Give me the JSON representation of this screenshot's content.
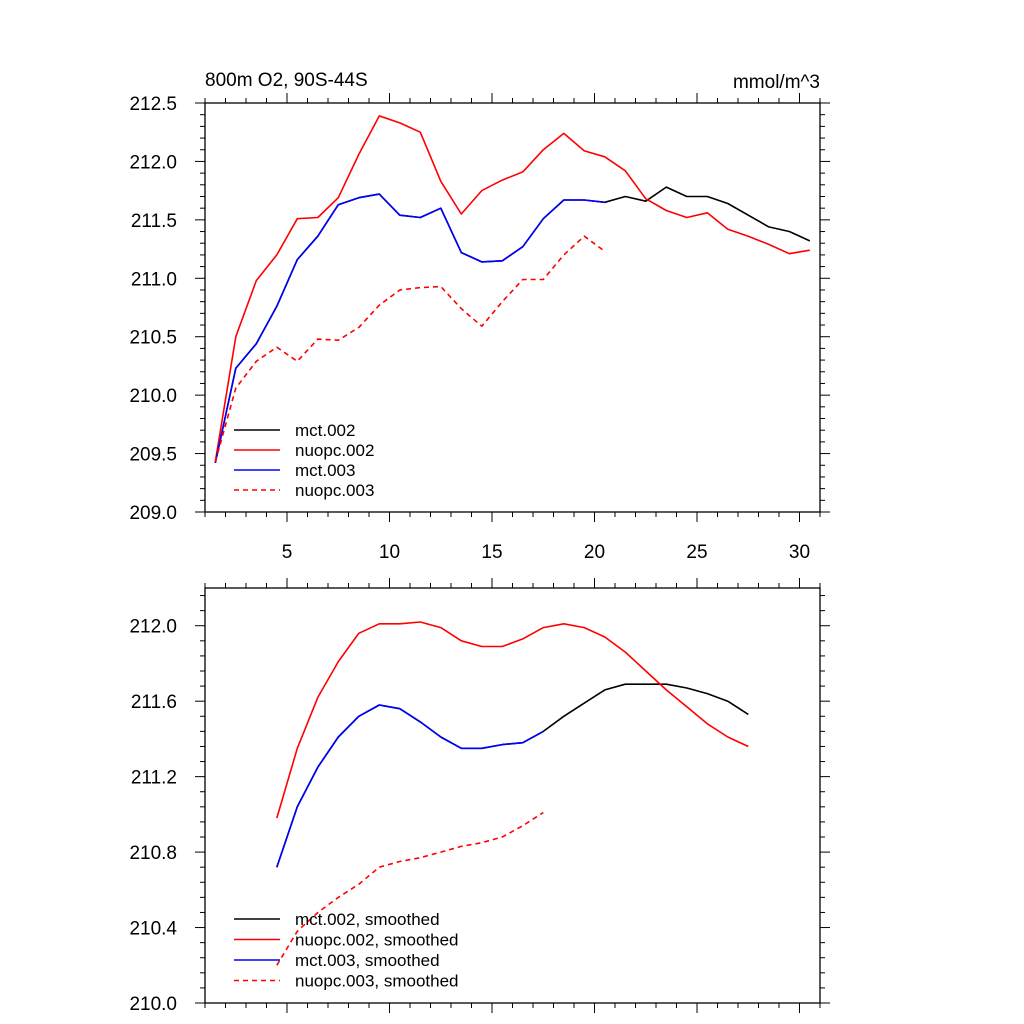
{
  "chart_data": [
    {
      "type": "line",
      "title": "800m O2, 90S-44S",
      "units": "mmol/m^3",
      "xlabel": "",
      "ylabel": "",
      "xlim": [
        1,
        31
      ],
      "ylim": [
        209.0,
        212.5
      ],
      "xticks": [
        5,
        10,
        15,
        20,
        25,
        30
      ],
      "xtick_labels": [
        "5",
        "10",
        "15",
        "20",
        "25",
        "30"
      ],
      "yticks": [
        209.0,
        209.5,
        210.0,
        210.5,
        211.0,
        211.5,
        212.0,
        212.5
      ],
      "ytick_labels": [
        "209.0",
        "209.5",
        "210.0",
        "210.5",
        "211.0",
        "211.5",
        "212.0",
        "212.5"
      ],
      "series": [
        {
          "name": "mct.002",
          "color": "#000000",
          "dash": "solid",
          "x": [
            1.5,
            2.5,
            3.5,
            4.5,
            5.5,
            6.5,
            7.5,
            8.5,
            9.5,
            10.5,
            11.5,
            12.5,
            13.5,
            14.5,
            15.5,
            16.5,
            17.5,
            18.5,
            19.5,
            20.5,
            21.5,
            22.5,
            23.5,
            24.5,
            25.5,
            26.5,
            27.5,
            28.5,
            29.5,
            30.5
          ],
          "y": [
            209.42,
            210.23,
            210.44,
            210.76,
            211.16,
            211.36,
            211.63,
            211.69,
            211.72,
            211.54,
            211.52,
            211.6,
            211.22,
            211.14,
            211.15,
            211.27,
            211.51,
            211.67,
            211.67,
            211.65,
            211.7,
            211.66,
            211.78,
            211.7,
            211.7,
            211.64,
            211.54,
            211.44,
            211.4,
            211.32
          ]
        },
        {
          "name": "nuopc.002",
          "color": "#ff0000",
          "dash": "solid",
          "x": [
            1.5,
            2.5,
            3.5,
            4.5,
            5.5,
            6.5,
            7.5,
            8.5,
            9.5,
            10.5,
            11.5,
            12.5,
            13.5,
            14.5,
            15.5,
            16.5,
            17.5,
            18.5,
            19.5,
            20.5,
            21.5,
            22.5,
            23.5,
            24.5,
            25.5,
            26.5,
            27.5,
            28.5,
            29.5,
            30.5
          ],
          "y": [
            209.43,
            210.5,
            210.98,
            211.2,
            211.51,
            211.52,
            211.69,
            212.06,
            212.39,
            212.33,
            212.25,
            211.83,
            211.55,
            211.75,
            211.84,
            211.91,
            212.1,
            212.24,
            212.09,
            212.04,
            211.92,
            211.68,
            211.58,
            211.52,
            211.56,
            211.42,
            211.36,
            211.29,
            211.21,
            211.24
          ]
        },
        {
          "name": "mct.003",
          "color": "#0000ff",
          "dash": "solid",
          "x": [
            1.5,
            2.5,
            3.5,
            4.5,
            5.5,
            6.5,
            7.5,
            8.5,
            9.5,
            10.5,
            11.5,
            12.5,
            13.5,
            14.5,
            15.5,
            16.5,
            17.5,
            18.5,
            19.5,
            20.5
          ],
          "y": [
            209.42,
            210.23,
            210.44,
            210.76,
            211.16,
            211.36,
            211.63,
            211.69,
            211.72,
            211.54,
            211.52,
            211.6,
            211.22,
            211.14,
            211.15,
            211.27,
            211.51,
            211.67,
            211.67,
            211.65
          ]
        },
        {
          "name": "nuopc.003",
          "color": "#ff0000",
          "dash": "dashed",
          "x": [
            1.5,
            2.5,
            3.5,
            4.5,
            5.5,
            6.5,
            7.5,
            8.5,
            9.5,
            10.5,
            11.5,
            12.5,
            13.5,
            14.5,
            15.5,
            16.5,
            17.5,
            18.5,
            19.5,
            20.5
          ],
          "y": [
            209.43,
            210.06,
            210.29,
            210.41,
            210.29,
            210.48,
            210.47,
            210.58,
            210.77,
            210.9,
            210.92,
            210.93,
            210.74,
            210.59,
            210.8,
            210.99,
            210.99,
            211.2,
            211.36,
            211.23
          ]
        }
      ]
    },
    {
      "type": "line",
      "title": "",
      "xlabel": "",
      "ylabel": "",
      "xlim": [
        1,
        31
      ],
      "ylim": [
        210.0,
        212.2
      ],
      "xticks": [
        5,
        10,
        15,
        20,
        25,
        30
      ],
      "xtick_labels": [],
      "yticks": [
        210.0,
        210.4,
        210.8,
        211.2,
        211.6,
        212.0
      ],
      "ytick_labels": [
        "210.0",
        "210.4",
        "210.8",
        "211.2",
        "211.6",
        "212.0"
      ],
      "series": [
        {
          "name": "mct.002, smoothed",
          "color": "#000000",
          "dash": "solid",
          "x": [
            4.5,
            5.5,
            6.5,
            7.5,
            8.5,
            9.5,
            10.5,
            11.5,
            12.5,
            13.5,
            14.5,
            15.5,
            16.5,
            17.5,
            18.5,
            19.5,
            20.5,
            21.5,
            22.5,
            23.5,
            24.5,
            25.5,
            26.5,
            27.5
          ],
          "y": [
            210.72,
            211.04,
            211.25,
            211.41,
            211.52,
            211.58,
            211.56,
            211.49,
            211.41,
            211.35,
            211.35,
            211.37,
            211.38,
            211.44,
            211.52,
            211.59,
            211.66,
            211.69,
            211.69,
            211.69,
            211.67,
            211.64,
            211.6,
            211.53
          ]
        },
        {
          "name": "nuopc.002, smoothed",
          "color": "#ff0000",
          "dash": "solid",
          "x": [
            4.5,
            5.5,
            6.5,
            7.5,
            8.5,
            9.5,
            10.5,
            11.5,
            12.5,
            13.5,
            14.5,
            15.5,
            16.5,
            17.5,
            18.5,
            19.5,
            20.5,
            21.5,
            22.5,
            23.5,
            24.5,
            25.5,
            26.5,
            27.5
          ],
          "y": [
            210.98,
            211.35,
            211.62,
            211.81,
            211.96,
            212.01,
            212.01,
            212.02,
            211.99,
            211.92,
            211.89,
            211.89,
            211.93,
            211.99,
            212.01,
            211.99,
            211.94,
            211.86,
            211.76,
            211.66,
            211.57,
            211.48,
            211.41,
            211.36
          ]
        },
        {
          "name": "mct.003, smoothed",
          "color": "#0000ff",
          "dash": "solid",
          "x": [
            4.5,
            5.5,
            6.5,
            7.5,
            8.5,
            9.5,
            10.5,
            11.5,
            12.5,
            13.5,
            14.5,
            15.5,
            16.5,
            17.5
          ],
          "y": [
            210.72,
            211.04,
            211.25,
            211.41,
            211.52,
            211.58,
            211.56,
            211.49,
            211.41,
            211.35,
            211.35,
            211.37,
            211.38,
            211.44
          ]
        },
        {
          "name": "nuopc.003, smoothed",
          "color": "#ff0000",
          "dash": "dashed",
          "x": [
            4.5,
            5.5,
            6.5,
            7.5,
            8.5,
            9.5,
            10.5,
            11.5,
            12.5,
            13.5,
            14.5,
            15.5,
            16.5,
            17.5
          ],
          "y": [
            210.2,
            210.38,
            210.48,
            210.56,
            210.63,
            210.72,
            210.75,
            210.77,
            210.8,
            210.83,
            210.85,
            210.88,
            210.94,
            211.01
          ]
        }
      ]
    }
  ]
}
